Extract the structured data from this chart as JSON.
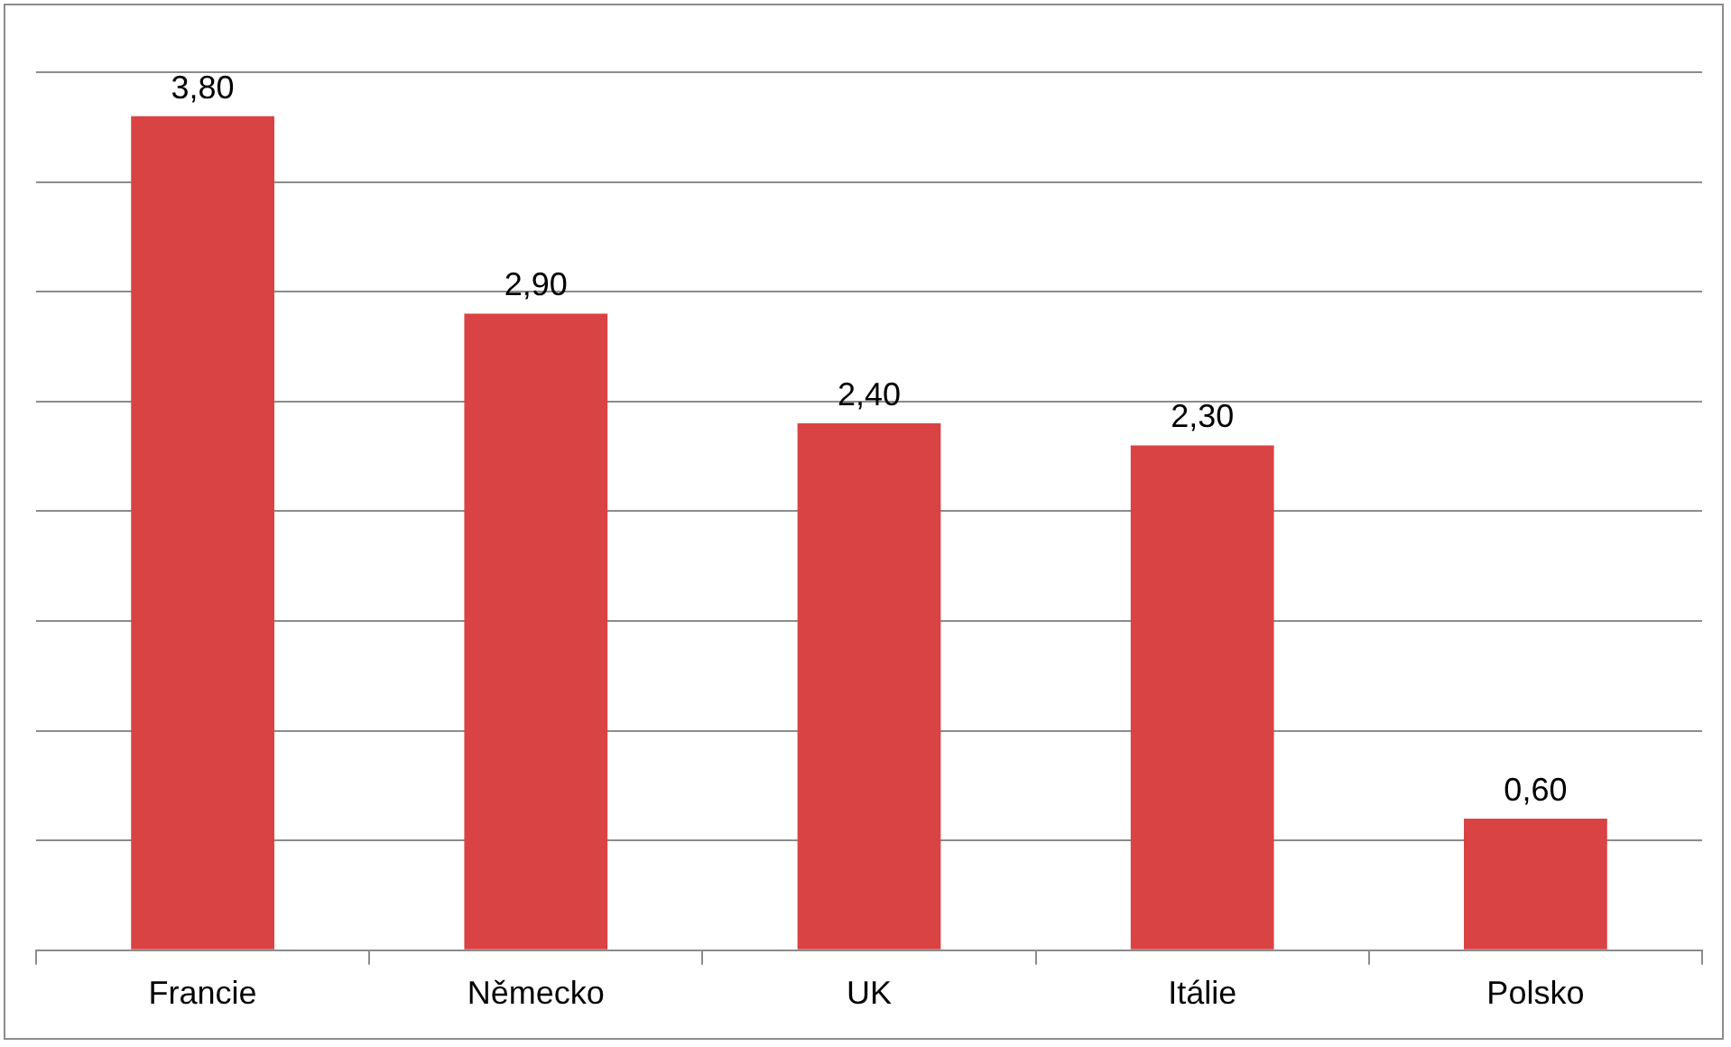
{
  "chart_data": {
    "type": "bar",
    "categories": [
      "Francie",
      "Německo",
      "UK",
      "Itálie",
      "Polsko"
    ],
    "values": [
      3.8,
      2.9,
      2.4,
      2.3,
      0.6
    ],
    "value_labels": [
      "3,80",
      "2,90",
      "2,40",
      "2,30",
      "0,60"
    ],
    "color": "#d94343",
    "ylim": [
      0,
      4
    ],
    "yticks": [
      {
        "value": 0,
        "label": null
      },
      {
        "value": 0.5,
        "label": null
      },
      {
        "value": 1,
        "label": null
      },
      {
        "value": 1.5,
        "label": null
      },
      {
        "value": 2,
        "label": null
      },
      {
        "value": 2.5,
        "label": null
      },
      {
        "value": 3,
        "label": null
      },
      {
        "value": 3.5,
        "label": null
      },
      {
        "value": 4,
        "label": null
      }
    ],
    "grid": "y"
  }
}
